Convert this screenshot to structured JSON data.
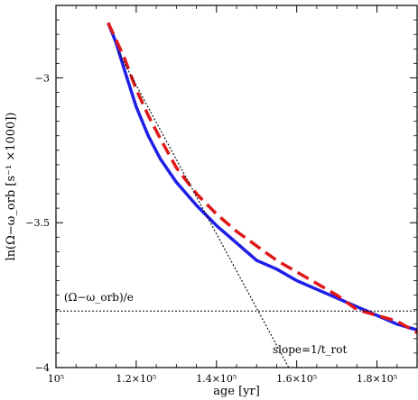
{
  "chart_data": {
    "type": "line",
    "xlabel": "age [yr]",
    "ylabel": "ln(Ω−ω_orb [s⁻¹ ×1000])",
    "xlim": [
      100000,
      190000
    ],
    "ylim": [
      -4.0,
      -2.75
    ],
    "xscale": "linear",
    "grid": false,
    "x_ticks": [
      {
        "value": 100000,
        "label": "10⁵"
      },
      {
        "value": 120000,
        "label": "1.2×10⁵"
      },
      {
        "value": 140000,
        "label": "1.4×10⁵"
      },
      {
        "value": 160000,
        "label": "1.6×10⁵"
      },
      {
        "value": 180000,
        "label": "1.8×10⁵"
      }
    ],
    "y_ticks": [
      {
        "value": -3.0,
        "label": "−3"
      },
      {
        "value": -3.5,
        "label": "−3.5"
      },
      {
        "value": -4.0,
        "label": "−4"
      }
    ],
    "series": [
      {
        "color": "#1f1fe6",
        "style": "solid",
        "x": [
          113000,
          115000,
          117000,
          120000,
          123000,
          126000,
          130000,
          135000,
          140000,
          145000,
          150000,
          155000,
          160000,
          165000,
          170000,
          175000,
          180000,
          185000,
          190000
        ],
        "y": [
          -2.81,
          -2.88,
          -2.97,
          -3.1,
          -3.2,
          -3.28,
          -3.36,
          -3.44,
          -3.51,
          -3.57,
          -3.63,
          -3.66,
          -3.7,
          -3.73,
          -3.76,
          -3.79,
          -3.82,
          -3.85,
          -3.87
        ]
      },
      {
        "color": "#e01818",
        "style": "dashed",
        "x": [
          113000,
          115000,
          117000,
          120000,
          123000,
          126000,
          130000,
          135000,
          140000,
          145000,
          150000,
          155000,
          160000,
          165000,
          170000,
          175000,
          180000,
          185000,
          190000
        ],
        "y": [
          -2.81,
          -2.87,
          -2.93,
          -3.04,
          -3.13,
          -3.21,
          -3.31,
          -3.4,
          -3.47,
          -3.53,
          -3.58,
          -3.63,
          -3.67,
          -3.71,
          -3.75,
          -3.8,
          -3.82,
          -3.84,
          -3.88
        ]
      },
      {
        "color": "#000000",
        "style": "dotted",
        "x": [
          115500,
          158000
        ],
        "y": [
          -2.91,
          -4.0
        ]
      }
    ],
    "reference_line": {
      "y": -3.805,
      "color": "#000000",
      "style": "dotted"
    },
    "annotations": [
      {
        "text": "(Ω−ω_orb)/e",
        "x": 102000,
        "y": -3.77
      },
      {
        "text": "slope=1/t_rot",
        "x": 154000,
        "y": -3.95
      }
    ]
  }
}
